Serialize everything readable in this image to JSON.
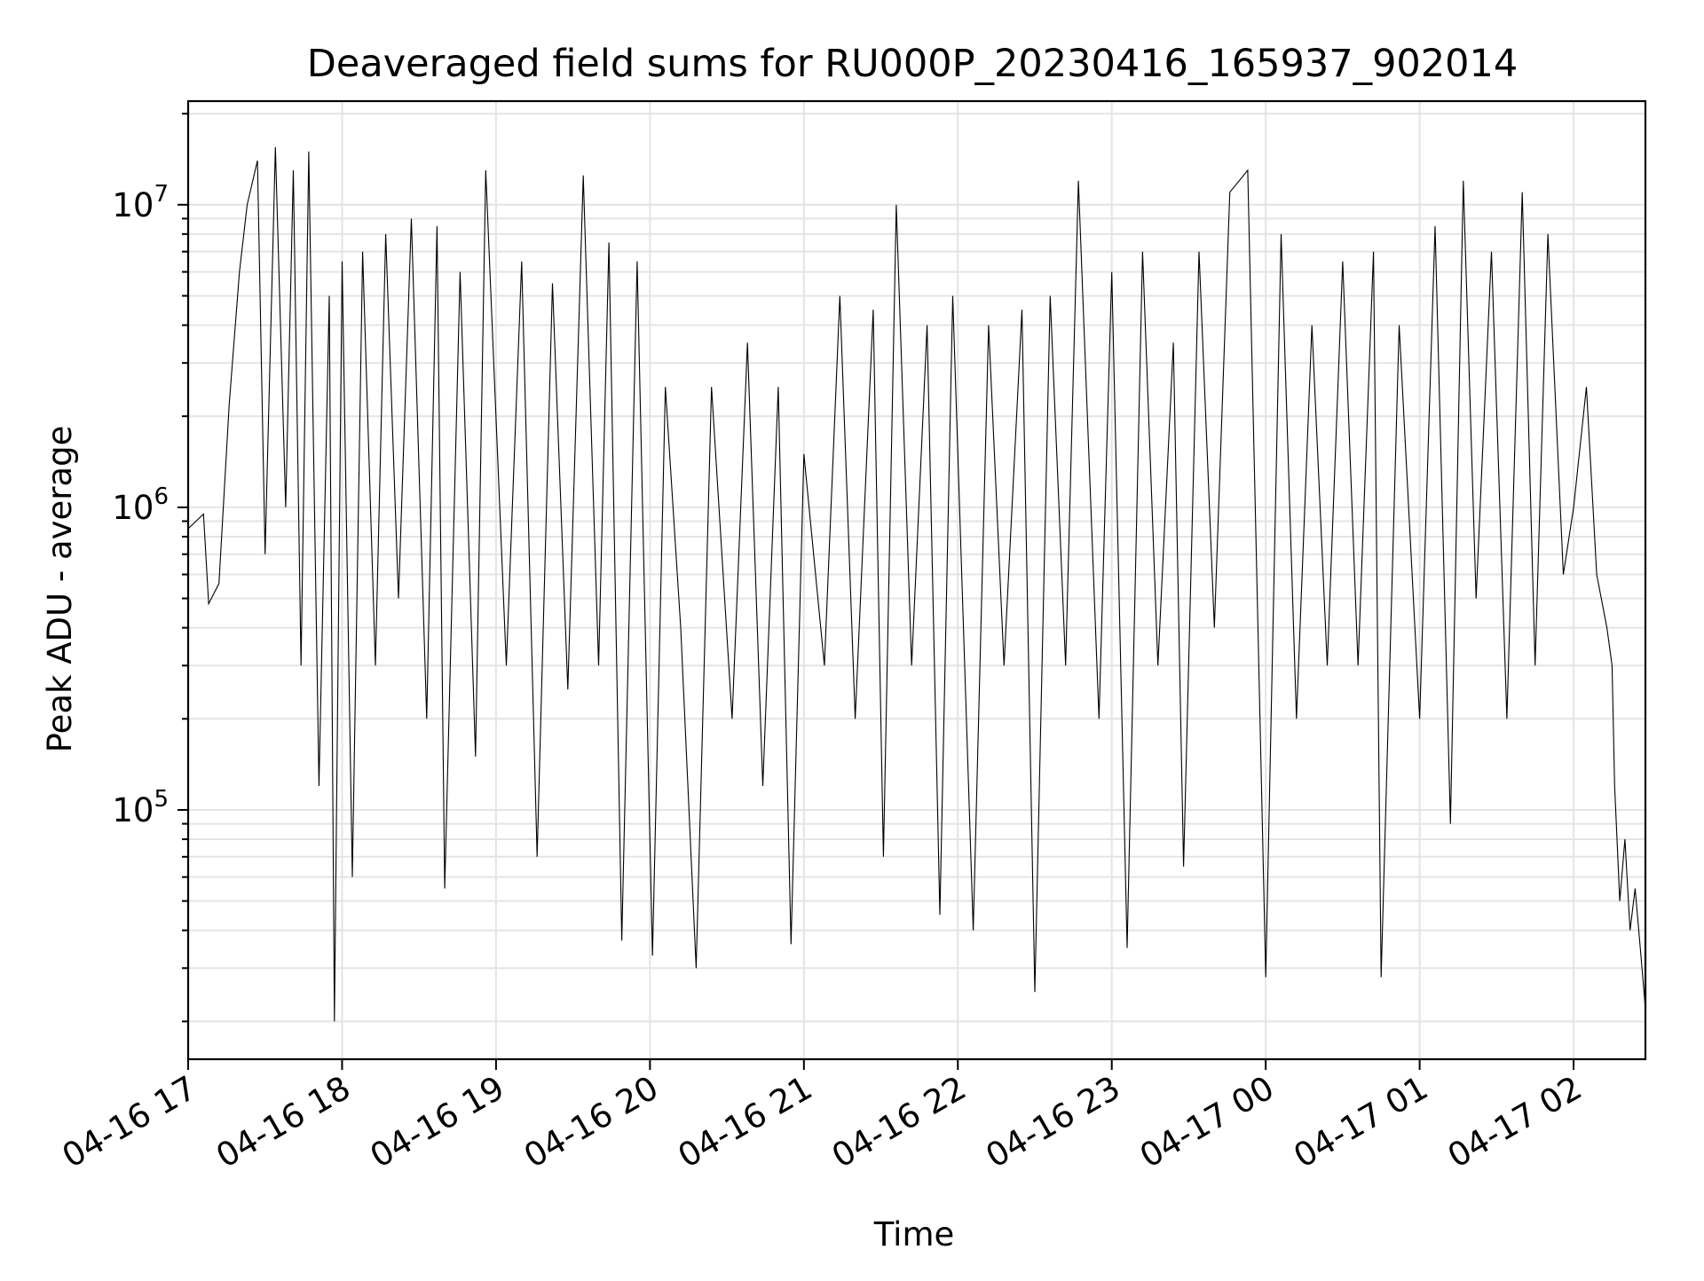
{
  "chart_data": {
    "type": "line",
    "title": "Deaveraged field sums for RU000P_20230416_165937_902014",
    "xlabel": "Time",
    "ylabel": "Peak ADU - average",
    "yscale": "log",
    "xlim": [
      "2023-04-16 17:00",
      "2023-04-17 02:28"
    ],
    "ylim": [
      15000,
      22000000
    ],
    "grid": true,
    "grid_color": "#e4e4e4",
    "line_color": "#000000",
    "x_ticks": [
      {
        "value": "2023-04-16 17:00",
        "label": "04-16 17"
      },
      {
        "value": "2023-04-16 18:00",
        "label": "04-16 18"
      },
      {
        "value": "2023-04-16 19:00",
        "label": "04-16 19"
      },
      {
        "value": "2023-04-16 20:00",
        "label": "04-16 20"
      },
      {
        "value": "2023-04-16 21:00",
        "label": "04-16 21"
      },
      {
        "value": "2023-04-16 22:00",
        "label": "04-16 22"
      },
      {
        "value": "2023-04-16 23:00",
        "label": "04-16 23"
      },
      {
        "value": "2023-04-17 00:00",
        "label": "04-17 00"
      },
      {
        "value": "2023-04-17 01:00",
        "label": "04-17 01"
      },
      {
        "value": "2023-04-17 02:00",
        "label": "04-17 02"
      }
    ],
    "y_ticks": [
      {
        "value": 100000,
        "base": "10",
        "exp": "5"
      },
      {
        "value": 1000000,
        "base": "10",
        "exp": "6"
      },
      {
        "value": 10000000,
        "base": "10",
        "exp": "7"
      }
    ],
    "series": [
      {
        "points": [
          [
            "2023-04-16 17:00",
            850000
          ],
          [
            "2023-04-16 17:06",
            950000
          ],
          [
            "2023-04-16 17:08",
            480000
          ],
          [
            "2023-04-16 17:12",
            560000
          ],
          [
            "2023-04-16 17:16",
            2200000
          ],
          [
            "2023-04-16 17:20",
            6000000
          ],
          [
            "2023-04-16 17:23",
            10000000
          ],
          [
            "2023-04-16 17:27",
            14000000
          ],
          [
            "2023-04-16 17:30",
            700000
          ],
          [
            "2023-04-16 17:34",
            15500000
          ],
          [
            "2023-04-16 17:38",
            1000000
          ],
          [
            "2023-04-16 17:41",
            13000000
          ],
          [
            "2023-04-16 17:44",
            300000
          ],
          [
            "2023-04-16 17:47",
            15000000
          ],
          [
            "2023-04-16 17:51",
            120000
          ],
          [
            "2023-04-16 17:55",
            5000000
          ],
          [
            "2023-04-16 17:57",
            20000
          ],
          [
            "2023-04-16 18:00",
            6500000
          ],
          [
            "2023-04-16 18:04",
            60000
          ],
          [
            "2023-04-16 18:08",
            7000000
          ],
          [
            "2023-04-16 18:13",
            300000
          ],
          [
            "2023-04-16 18:17",
            8000000
          ],
          [
            "2023-04-16 18:22",
            500000
          ],
          [
            "2023-04-16 18:27",
            9000000
          ],
          [
            "2023-04-16 18:33",
            200000
          ],
          [
            "2023-04-16 18:37",
            8500000
          ],
          [
            "2023-04-16 18:40",
            55000
          ],
          [
            "2023-04-16 18:46",
            6000000
          ],
          [
            "2023-04-16 18:52",
            150000
          ],
          [
            "2023-04-16 18:56",
            13000000
          ],
          [
            "2023-04-16 19:04",
            300000
          ],
          [
            "2023-04-16 19:10",
            6500000
          ],
          [
            "2023-04-16 19:16",
            70000
          ],
          [
            "2023-04-16 19:22",
            5500000
          ],
          [
            "2023-04-16 19:28",
            250000
          ],
          [
            "2023-04-16 19:34",
            12500000
          ],
          [
            "2023-04-16 19:40",
            300000
          ],
          [
            "2023-04-16 19:44",
            7500000
          ],
          [
            "2023-04-16 19:49",
            37000
          ],
          [
            "2023-04-16 19:55",
            6500000
          ],
          [
            "2023-04-16 20:01",
            33000
          ],
          [
            "2023-04-16 20:06",
            2500000
          ],
          [
            "2023-04-16 20:12",
            400000
          ],
          [
            "2023-04-16 20:18",
            30000
          ],
          [
            "2023-04-16 20:24",
            2500000
          ],
          [
            "2023-04-16 20:32",
            200000
          ],
          [
            "2023-04-16 20:38",
            3500000
          ],
          [
            "2023-04-16 20:44",
            120000
          ],
          [
            "2023-04-16 20:50",
            2500000
          ],
          [
            "2023-04-16 20:55",
            36000
          ],
          [
            "2023-04-16 21:00",
            1500000
          ],
          [
            "2023-04-16 21:08",
            300000
          ],
          [
            "2023-04-16 21:14",
            5000000
          ],
          [
            "2023-04-16 21:20",
            200000
          ],
          [
            "2023-04-16 21:27",
            4500000
          ],
          [
            "2023-04-16 21:31",
            70000
          ],
          [
            "2023-04-16 21:36",
            10000000
          ],
          [
            "2023-04-16 21:42",
            300000
          ],
          [
            "2023-04-16 21:48",
            4000000
          ],
          [
            "2023-04-16 21:53",
            45000
          ],
          [
            "2023-04-16 21:58",
            5000000
          ],
          [
            "2023-04-16 22:06",
            40000
          ],
          [
            "2023-04-16 22:12",
            4000000
          ],
          [
            "2023-04-16 22:18",
            300000
          ],
          [
            "2023-04-16 22:25",
            4500000
          ],
          [
            "2023-04-16 22:30",
            25000
          ],
          [
            "2023-04-16 22:36",
            5000000
          ],
          [
            "2023-04-16 22:42",
            300000
          ],
          [
            "2023-04-16 22:47",
            12000000
          ],
          [
            "2023-04-16 22:55",
            200000
          ],
          [
            "2023-04-16 23:00",
            6000000
          ],
          [
            "2023-04-16 23:06",
            35000
          ],
          [
            "2023-04-16 23:12",
            7000000
          ],
          [
            "2023-04-16 23:18",
            300000
          ],
          [
            "2023-04-16 23:24",
            3500000
          ],
          [
            "2023-04-16 23:28",
            65000
          ],
          [
            "2023-04-16 23:34",
            7000000
          ],
          [
            "2023-04-16 23:40",
            400000
          ],
          [
            "2023-04-16 23:46",
            11000000
          ],
          [
            "2023-04-16 23:53",
            13000000
          ],
          [
            "2023-04-17 00:00",
            28000
          ],
          [
            "2023-04-17 00:06",
            8000000
          ],
          [
            "2023-04-17 00:12",
            200000
          ],
          [
            "2023-04-17 00:18",
            4000000
          ],
          [
            "2023-04-17 00:24",
            300000
          ],
          [
            "2023-04-17 00:30",
            6500000
          ],
          [
            "2023-04-17 00:36",
            300000
          ],
          [
            "2023-04-17 00:42",
            7000000
          ],
          [
            "2023-04-17 00:45",
            28000
          ],
          [
            "2023-04-17 00:52",
            4000000
          ],
          [
            "2023-04-17 01:00",
            200000
          ],
          [
            "2023-04-17 01:06",
            8500000
          ],
          [
            "2023-04-17 01:12",
            90000
          ],
          [
            "2023-04-17 01:17",
            12000000
          ],
          [
            "2023-04-17 01:22",
            500000
          ],
          [
            "2023-04-17 01:28",
            7000000
          ],
          [
            "2023-04-17 01:34",
            200000
          ],
          [
            "2023-04-17 01:40",
            11000000
          ],
          [
            "2023-04-17 01:45",
            300000
          ],
          [
            "2023-04-17 01:50",
            8000000
          ],
          [
            "2023-04-17 01:56",
            600000
          ],
          [
            "2023-04-17 02:00",
            1000000
          ],
          [
            "2023-04-17 02:05",
            2500000
          ],
          [
            "2023-04-17 02:09",
            600000
          ],
          [
            "2023-04-17 02:13",
            400000
          ],
          [
            "2023-04-17 02:15",
            300000
          ],
          [
            "2023-04-17 02:16",
            120000
          ],
          [
            "2023-04-17 02:18",
            50000
          ],
          [
            "2023-04-17 02:20",
            80000
          ],
          [
            "2023-04-17 02:22",
            40000
          ],
          [
            "2023-04-17 02:24",
            55000
          ],
          [
            "2023-04-17 02:26",
            35000
          ],
          [
            "2023-04-17 02:28",
            22000
          ]
        ]
      }
    ]
  }
}
